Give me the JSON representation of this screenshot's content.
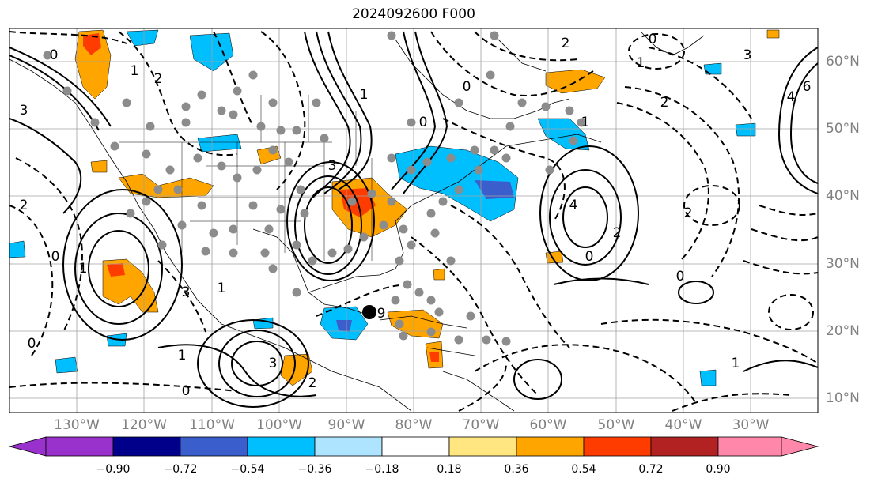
{
  "title": "2024092600 F000",
  "longitude_labels": [
    "130°W",
    "120°W",
    "110°W",
    "100°W",
    "90°W",
    "80°W",
    "70°W",
    "60°W",
    "50°W",
    "40°W",
    "30°W"
  ],
  "latitude_labels": [
    "60°N",
    "50°N",
    "40°N",
    "30°N",
    "20°N",
    "10°N"
  ],
  "map_extent": {
    "lon_min": -140,
    "lon_max": -20,
    "lat_min": 8,
    "lat_max": 65
  },
  "colorbar": {
    "tick_labels": [
      "−0.90",
      "−0.72",
      "−0.54",
      "−0.36",
      "−0.18",
      "0.18",
      "0.36",
      "0.54",
      "0.72",
      "0.90"
    ],
    "colors": [
      "#9932cc",
      "#00008b",
      "#3a5fcd",
      "#00bfff",
      "#aee4ff",
      "#ffffff",
      "#ffe680",
      "#ffa500",
      "#ff3c00",
      "#b22222",
      "#ff88aa"
    ],
    "extend": "both"
  },
  "contour_labels": [
    "3",
    "0",
    "1",
    "2",
    "3",
    "1",
    "0",
    "0",
    "2",
    "4",
    "1",
    "2",
    "0",
    "9",
    "6",
    "4",
    "3",
    "2",
    "1",
    "0",
    "1",
    "2",
    "3",
    "1",
    "0",
    "0",
    "2",
    "1",
    "0",
    "1",
    "3",
    "0",
    "2"
  ],
  "marker": {
    "type": "black-dot",
    "lon": -86.5,
    "lat": 22.5
  }
}
